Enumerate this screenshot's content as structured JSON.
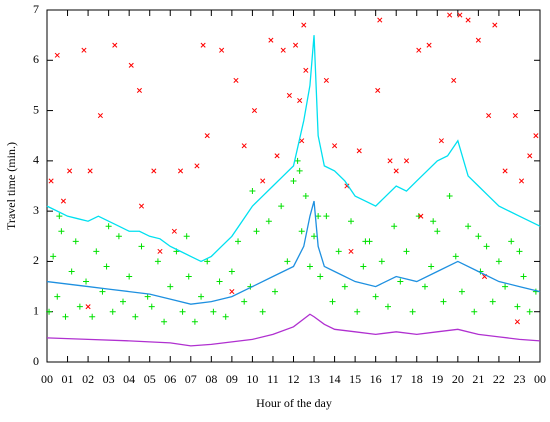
{
  "chart_data": {
    "type": "scatter",
    "xlabel": "Hour of the day",
    "ylabel": "Travel time (min.)",
    "xlim": [
      0,
      24
    ],
    "ylim": [
      0,
      7
    ],
    "xticks": [
      {
        "value": 0,
        "label": "00"
      },
      {
        "value": 1,
        "label": "01"
      },
      {
        "value": 2,
        "label": "02"
      },
      {
        "value": 3,
        "label": "03"
      },
      {
        "value": 4,
        "label": "04"
      },
      {
        "value": 5,
        "label": "05"
      },
      {
        "value": 6,
        "label": "06"
      },
      {
        "value": 7,
        "label": "07"
      },
      {
        "value": 8,
        "label": "08"
      },
      {
        "value": 9,
        "label": "09"
      },
      {
        "value": 10,
        "label": "10"
      },
      {
        "value": 11,
        "label": "11"
      },
      {
        "value": 12,
        "label": "12"
      },
      {
        "value": 13,
        "label": "13"
      },
      {
        "value": 14,
        "label": "14"
      },
      {
        "value": 15,
        "label": "15"
      },
      {
        "value": 16,
        "label": "16"
      },
      {
        "value": 17,
        "label": "17"
      },
      {
        "value": 18,
        "label": "18"
      },
      {
        "value": 19,
        "label": "19"
      },
      {
        "value": 20,
        "label": "20"
      },
      {
        "value": 21,
        "label": "21"
      },
      {
        "value": 22,
        "label": "22"
      },
      {
        "value": 23,
        "label": "23"
      },
      {
        "value": 24,
        "label": "00"
      }
    ],
    "yticks": [
      0,
      1,
      2,
      3,
      4,
      5,
      6,
      7
    ],
    "series": [
      {
        "kind": "marker",
        "marker": "x",
        "color": "#ff0000",
        "x": [
          0.2,
          0.5,
          0.8,
          1.1,
          1.8,
          2.1,
          2.6,
          3.3,
          4.1,
          4.5,
          4.6,
          5.2,
          6.2,
          6.5,
          7.3,
          7.6,
          7.8,
          8.5,
          9.2,
          9.6,
          10.1,
          10.5,
          10.9,
          11.2,
          11.5,
          11.8,
          12.1,
          12.3,
          12.4,
          12.5,
          12.6,
          13.6,
          14.0,
          14.6,
          15.2,
          16.2,
          16.1,
          16.7,
          17.0,
          17.5,
          18.1,
          18.6,
          19.2,
          19.6,
          19.8,
          20.1,
          20.5,
          21.0,
          21.5,
          21.8,
          22.3,
          22.8,
          23.1,
          23.5,
          23.8,
          2.0,
          5.5,
          9.0,
          14.8,
          18.2,
          21.3,
          22.9
        ],
        "values": [
          3.6,
          6.1,
          3.2,
          3.8,
          6.2,
          3.8,
          4.9,
          6.3,
          5.9,
          5.4,
          3.1,
          3.8,
          2.6,
          3.8,
          3.9,
          6.3,
          4.5,
          6.2,
          5.6,
          4.3,
          5.0,
          3.6,
          6.4,
          4.1,
          6.2,
          5.3,
          6.3,
          5.2,
          4.4,
          6.7,
          5.8,
          5.6,
          4.3,
          3.5,
          4.2,
          6.8,
          5.4,
          4.0,
          3.8,
          4.0,
          6.2,
          6.3,
          4.4,
          6.9,
          5.6,
          6.9,
          6.8,
          6.4,
          4.9,
          6.7,
          3.8,
          4.9,
          3.6,
          4.1,
          4.5,
          1.1,
          2.2,
          1.4,
          2.2,
          2.9,
          1.7,
          0.8
        ]
      },
      {
        "kind": "marker",
        "marker": "+",
        "color": "#00e000",
        "x": [
          0.1,
          0.3,
          0.5,
          0.7,
          0.9,
          1.2,
          1.4,
          1.6,
          1.9,
          2.2,
          2.4,
          2.7,
          2.9,
          3.2,
          3.5,
          3.7,
          4.0,
          4.3,
          4.6,
          4.9,
          5.1,
          5.4,
          5.7,
          6.0,
          6.3,
          6.6,
          6.9,
          7.2,
          7.5,
          7.8,
          8.1,
          8.4,
          8.7,
          9.0,
          9.3,
          9.6,
          9.9,
          10.2,
          10.5,
          10.8,
          11.1,
          11.4,
          11.7,
          12.0,
          12.2,
          12.4,
          12.6,
          12.8,
          13.0,
          13.3,
          13.6,
          13.9,
          14.2,
          14.5,
          14.8,
          15.1,
          15.4,
          15.7,
          16.0,
          16.3,
          16.6,
          16.9,
          17.2,
          17.5,
          17.8,
          18.1,
          18.4,
          18.7,
          19.0,
          19.3,
          19.6,
          19.9,
          20.2,
          20.5,
          20.8,
          21.1,
          21.4,
          21.7,
          22.0,
          22.3,
          22.6,
          22.9,
          23.2,
          23.5,
          23.8,
          0.6,
          3.0,
          6.8,
          10.0,
          12.3,
          13.2,
          15.5,
          18.8,
          21.0,
          23.0
        ],
        "values": [
          1.0,
          2.1,
          1.3,
          2.6,
          0.9,
          1.8,
          2.4,
          1.1,
          1.6,
          0.9,
          2.2,
          1.4,
          1.9,
          1.0,
          2.5,
          1.2,
          1.7,
          0.9,
          2.3,
          1.3,
          1.1,
          2.0,
          0.8,
          1.5,
          2.2,
          1.0,
          1.7,
          0.8,
          1.3,
          2.0,
          1.0,
          1.6,
          0.9,
          1.8,
          2.4,
          1.2,
          1.5,
          2.6,
          1.0,
          2.8,
          1.4,
          3.1,
          2.0,
          3.6,
          4.0,
          2.6,
          3.3,
          1.9,
          2.5,
          1.7,
          2.9,
          1.2,
          2.2,
          1.5,
          2.8,
          1.0,
          1.9,
          2.4,
          1.3,
          2.0,
          1.1,
          2.7,
          1.6,
          2.2,
          1.0,
          2.9,
          1.5,
          1.9,
          2.6,
          1.2,
          3.3,
          2.1,
          1.4,
          2.7,
          1.0,
          1.8,
          2.3,
          1.2,
          2.0,
          1.5,
          2.4,
          1.1,
          1.7,
          1.0,
          1.4,
          2.9,
          2.7,
          2.5,
          3.4,
          3.8,
          2.9,
          2.4,
          2.8,
          2.5,
          2.2
        ]
      },
      {
        "kind": "line",
        "color": "#00e0f0",
        "x": [
          0,
          0.5,
          1,
          1.5,
          2,
          2.5,
          3,
          3.5,
          4,
          4.5,
          5,
          5.5,
          6,
          6.5,
          7,
          7.5,
          8,
          8.5,
          9,
          9.5,
          10,
          10.5,
          11,
          11.5,
          12,
          12.5,
          12.8,
          13,
          13.2,
          13.5,
          14,
          14.5,
          15,
          15.5,
          16,
          16.5,
          17,
          17.5,
          18,
          18.5,
          19,
          19.5,
          20,
          20.5,
          21,
          21.5,
          22,
          22.5,
          23,
          23.5,
          24
        ],
        "values": [
          3.1,
          3.0,
          2.9,
          2.85,
          2.8,
          2.9,
          2.8,
          2.7,
          2.6,
          2.6,
          2.5,
          2.45,
          2.3,
          2.2,
          2.1,
          2.0,
          2.1,
          2.3,
          2.5,
          2.8,
          3.1,
          3.3,
          3.5,
          3.7,
          3.9,
          4.8,
          5.5,
          6.5,
          4.5,
          3.9,
          3.8,
          3.6,
          3.3,
          3.2,
          3.1,
          3.3,
          3.5,
          3.4,
          3.6,
          3.8,
          4.0,
          4.1,
          4.4,
          3.7,
          3.5,
          3.3,
          3.1,
          3.0,
          2.9,
          2.8,
          2.7
        ]
      },
      {
        "kind": "line",
        "color": "#1e90e0",
        "x": [
          0,
          1,
          2,
          3,
          4,
          5,
          6,
          7,
          8,
          9,
          10,
          11,
          12,
          12.5,
          12.8,
          13,
          13.2,
          13.5,
          14,
          15,
          16,
          17,
          18,
          19,
          20,
          21,
          22,
          23,
          24
        ],
        "values": [
          1.6,
          1.55,
          1.5,
          1.45,
          1.4,
          1.35,
          1.25,
          1.15,
          1.2,
          1.3,
          1.5,
          1.7,
          1.9,
          2.3,
          2.9,
          3.2,
          2.3,
          1.9,
          1.8,
          1.6,
          1.5,
          1.7,
          1.6,
          1.8,
          2.0,
          1.8,
          1.6,
          1.5,
          1.4
        ]
      },
      {
        "kind": "line",
        "color": "#b030d0",
        "x": [
          0,
          2,
          4,
          6,
          7,
          8,
          10,
          11,
          12,
          12.8,
          13,
          13.5,
          14,
          15,
          16,
          17,
          18,
          19,
          20,
          21,
          22,
          23,
          24
        ],
        "values": [
          0.48,
          0.45,
          0.42,
          0.38,
          0.32,
          0.35,
          0.45,
          0.55,
          0.7,
          0.95,
          0.9,
          0.75,
          0.65,
          0.6,
          0.55,
          0.6,
          0.55,
          0.6,
          0.65,
          0.55,
          0.5,
          0.45,
          0.42
        ]
      }
    ]
  }
}
